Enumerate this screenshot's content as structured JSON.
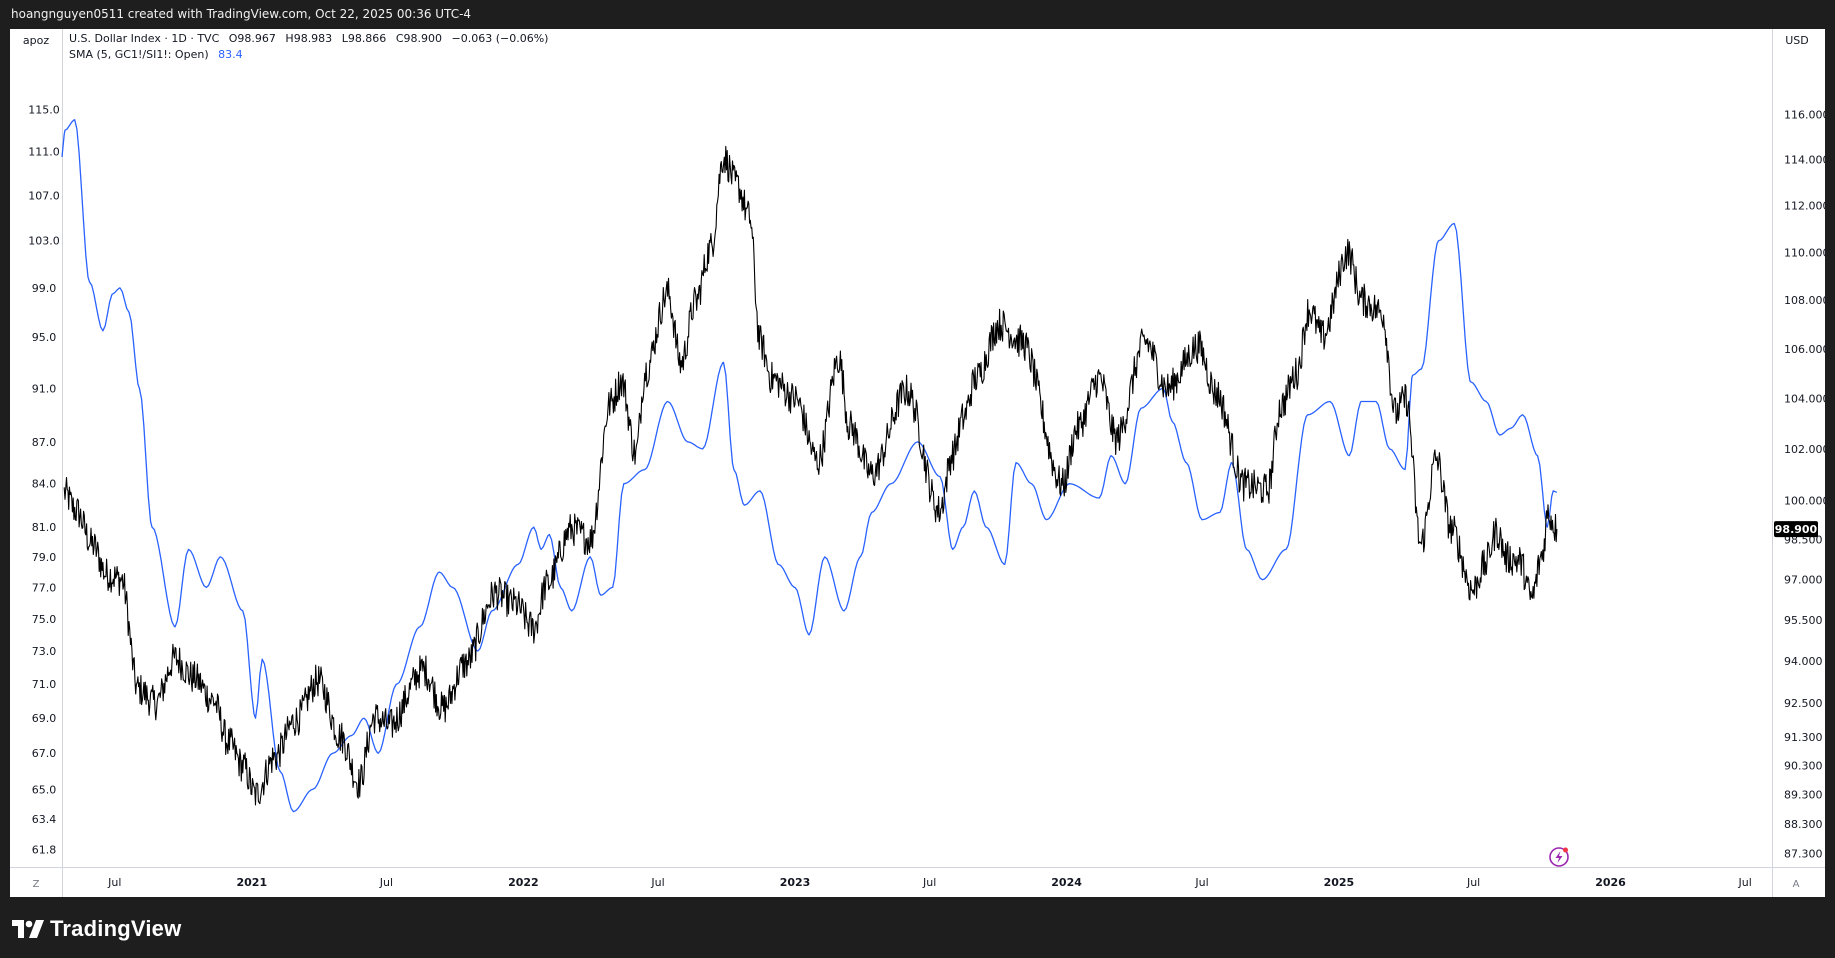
{
  "header": {
    "attribution": "hoangnguyen0511 created with TradingView.com, Oct 22, 2025 00:36 UTC-4"
  },
  "legend": {
    "symbol_line": "U.S. Dollar Index · 1D · TVC",
    "open": "O98.967",
    "high": "H98.983",
    "low": "L98.866",
    "close": "C98.900",
    "change": "−0.063 (−0.06%)",
    "sma_label": "SMA (5, GC1!/SI1!: Open)",
    "sma_value": "83.4"
  },
  "left_scale_label": "apoz",
  "right_scale_label": "USD",
  "last_price_label": "98.900",
  "scale_mode_left": "Z",
  "scale_mode_right": "A",
  "brand": {
    "name": "TradingView"
  },
  "colors": {
    "price": "#000000",
    "sma": "#2962ff",
    "last_price_badge": "#000000",
    "background": "#ffffff",
    "frame": "#1e1e1e",
    "text": "#131722"
  },
  "icons": {
    "logo": "tradingview-logo-icon",
    "alert": "lightning-icon"
  },
  "chart_data": {
    "type": "line",
    "scales": {
      "left": "logarithmic",
      "right": "logarithmic"
    },
    "grid": false,
    "x_axis": {
      "ticks": [
        "Jul",
        "2021",
        "Jul",
        "2022",
        "Jul",
        "2023",
        "Jul",
        "2024",
        "Jul",
        "2025",
        "Jul",
        "2026",
        "Jul"
      ],
      "tick_dates": [
        "2020-07-01",
        "2021-01-01",
        "2021-07-01",
        "2022-01-01",
        "2022-07-01",
        "2023-01-01",
        "2023-07-01",
        "2024-01-01",
        "2024-07-01",
        "2025-01-01",
        "2025-07-01",
        "2026-01-01",
        "2026-07-01"
      ],
      "range": [
        "2020-04-21",
        "2026-08-06"
      ]
    },
    "left_axis": {
      "ticks": [
        "115.0",
        "111.0",
        "107.0",
        "103.0",
        "99.0",
        "95.0",
        "91.0",
        "87.0",
        "84.0",
        "81.0",
        "79.0",
        "77.0",
        "75.0",
        "73.0",
        "71.0",
        "69.0",
        "67.0",
        "65.0",
        "63.4",
        "61.8"
      ],
      "range": [
        60.9,
        122.2
      ]
    },
    "right_axis": {
      "ticks": [
        "116.000",
        "114.000",
        "112.000",
        "110.000",
        "108.000",
        "106.000",
        "104.000",
        "102.000",
        "100.000",
        "98.500",
        "97.000",
        "95.500",
        "94.000",
        "92.500",
        "91.300",
        "90.300",
        "89.300",
        "88.300",
        "87.300"
      ],
      "range": [
        86.85,
        119.5
      ]
    },
    "series": [
      {
        "name": "U.S. Dollar Index",
        "axis": "right",
        "x": [
          "2020-04-24",
          "2020-05-10",
          "2020-06-01",
          "2020-06-20",
          "2020-07-10",
          "2020-08-01",
          "2020-08-25",
          "2020-09-20",
          "2020-10-15",
          "2020-11-10",
          "2020-12-01",
          "2020-12-20",
          "2021-01-06",
          "2021-02-01",
          "2021-03-01",
          "2021-03-31",
          "2021-05-01",
          "2021-05-25",
          "2021-06-15",
          "2021-07-05",
          "2021-08-20",
          "2021-09-15",
          "2021-10-15",
          "2021-11-25",
          "2021-12-20",
          "2022-01-15",
          "2022-02-01",
          "2022-03-07",
          "2022-04-01",
          "2022-04-28",
          "2022-05-13",
          "2022-06-01",
          "2022-06-14",
          "2022-07-14",
          "2022-08-01",
          "2022-08-20",
          "2022-09-10",
          "2022-09-27",
          "2022-10-15",
          "2022-11-01",
          "2022-11-15",
          "2022-12-01",
          "2023-01-01",
          "2023-02-01",
          "2023-03-01",
          "2023-03-15",
          "2023-04-14",
          "2023-05-31",
          "2023-07-14",
          "2023-08-01",
          "2023-08-15",
          "2023-09-01",
          "2023-10-03",
          "2023-11-01",
          "2023-12-27",
          "2024-01-15",
          "2024-02-14",
          "2024-03-08",
          "2024-04-16",
          "2024-05-15",
          "2024-06-26",
          "2024-07-20",
          "2024-08-27",
          "2024-09-27",
          "2024-10-15",
          "2024-11-05",
          "2024-11-22",
          "2024-12-10",
          "2025-01-13",
          "2025-02-01",
          "2025-02-28",
          "2025-03-18",
          "2025-04-01",
          "2025-04-21",
          "2025-05-12",
          "2025-06-01",
          "2025-06-30",
          "2025-07-15",
          "2025-08-01",
          "2025-08-15",
          "2025-09-01",
          "2025-09-17",
          "2025-10-01",
          "2025-10-09",
          "2025-10-21"
        ],
        "values": [
          100.3,
          99.6,
          98.3,
          97.2,
          97.0,
          93.0,
          92.5,
          94.1,
          93.4,
          92.6,
          91.1,
          90.3,
          89.3,
          90.6,
          91.9,
          93.3,
          91.3,
          89.7,
          92.0,
          91.7,
          93.7,
          92.3,
          93.9,
          96.5,
          96.1,
          95.2,
          96.8,
          98.9,
          98.5,
          103.8,
          104.7,
          101.8,
          105.1,
          108.3,
          105.4,
          107.9,
          110.2,
          114.1,
          112.9,
          111.5,
          106.3,
          104.8,
          104.0,
          101.5,
          105.6,
          102.9,
          101.0,
          104.3,
          99.6,
          101.8,
          103.2,
          104.8,
          107.0,
          106.3,
          100.6,
          102.8,
          104.8,
          102.4,
          106.3,
          104.4,
          106.1,
          104.2,
          100.6,
          100.4,
          103.7,
          105.0,
          107.6,
          106.5,
          110.0,
          108.0,
          107.5,
          103.4,
          104.0,
          98.3,
          101.6,
          98.9,
          96.6,
          97.5,
          98.8,
          97.8,
          97.7,
          96.3,
          97.9,
          99.5,
          98.9
        ]
      },
      {
        "name": "SMA (5, GC1!/SI1!: Open)",
        "axis": "left",
        "x": [
          "2020-04-21",
          "2020-04-25",
          "2020-05-08",
          "2020-05-28",
          "2020-06-15",
          "2020-06-28",
          "2020-07-08",
          "2020-07-20",
          "2020-08-03",
          "2020-08-20",
          "2020-09-20",
          "2020-10-08",
          "2020-11-01",
          "2020-11-20",
          "2020-12-20",
          "2021-01-06",
          "2021-01-15",
          "2021-02-08",
          "2021-02-26",
          "2021-03-24",
          "2021-04-20",
          "2021-05-15",
          "2021-06-01",
          "2021-06-20",
          "2021-07-15",
          "2021-08-15",
          "2021-09-10",
          "2021-09-28",
          "2021-11-01",
          "2021-11-20",
          "2021-12-25",
          "2022-01-15",
          "2022-01-25",
          "2022-02-05",
          "2022-02-20",
          "2022-03-07",
          "2022-04-01",
          "2022-04-15",
          "2022-05-01",
          "2022-05-16",
          "2022-06-13",
          "2022-07-14",
          "2022-08-10",
          "2022-08-30",
          "2022-09-27",
          "2022-10-11",
          "2022-10-25",
          "2022-11-15",
          "2022-12-10",
          "2023-01-01",
          "2023-01-20",
          "2023-02-10",
          "2023-03-08",
          "2023-03-30",
          "2023-04-14",
          "2023-05-10",
          "2023-06-15",
          "2023-07-15",
          "2023-08-01",
          "2023-08-15",
          "2023-08-30",
          "2023-09-15",
          "2023-10-10",
          "2023-10-25",
          "2023-11-15",
          "2023-12-05",
          "2024-01-05",
          "2024-02-14",
          "2024-03-01",
          "2024-03-20",
          "2024-04-10",
          "2024-05-10",
          "2024-05-22",
          "2024-06-10",
          "2024-07-01",
          "2024-07-25",
          "2024-08-10",
          "2024-08-30",
          "2024-09-20",
          "2024-10-22",
          "2024-11-20",
          "2024-12-20",
          "2025-01-15",
          "2025-01-31",
          "2025-02-20",
          "2025-03-10",
          "2025-03-31",
          "2025-04-10",
          "2025-04-22",
          "2025-05-15",
          "2025-06-05",
          "2025-06-27",
          "2025-07-18",
          "2025-08-05",
          "2025-08-20",
          "2025-09-05",
          "2025-09-25",
          "2025-10-08",
          "2025-10-16",
          "2025-10-21"
        ],
        "values": [
          110.5,
          113.0,
          114.0,
          99.5,
          95.5,
          98.5,
          99.0,
          97.0,
          91.0,
          81.0,
          74.5,
          79.5,
          77.0,
          79.0,
          75.5,
          69.0,
          72.5,
          66.0,
          63.8,
          65.0,
          67.0,
          68.0,
          69.0,
          67.0,
          71.0,
          74.5,
          78.0,
          77.0,
          73.0,
          75.5,
          78.5,
          81.0,
          79.5,
          80.5,
          77.0,
          75.5,
          79.0,
          76.5,
          77.0,
          84.0,
          85.0,
          90.0,
          87.0,
          86.5,
          93.0,
          85.0,
          82.5,
          83.5,
          78.5,
          77.0,
          74.0,
          79.0,
          75.5,
          79.0,
          82.0,
          84.0,
          87.0,
          84.5,
          79.5,
          81.0,
          83.5,
          81.0,
          78.5,
          85.5,
          84.0,
          81.5,
          84.0,
          83.0,
          86.0,
          84.0,
          89.5,
          91.0,
          88.5,
          85.5,
          81.5,
          82.0,
          85.5,
          79.5,
          77.5,
          79.5,
          89.0,
          90.0,
          86.0,
          90.0,
          90.0,
          86.5,
          85.0,
          92.0,
          92.5,
          103.0,
          104.5,
          91.5,
          90.0,
          87.5,
          88.0,
          89.0,
          86.0,
          81.0,
          83.5,
          83.4
        ]
      }
    ]
  }
}
